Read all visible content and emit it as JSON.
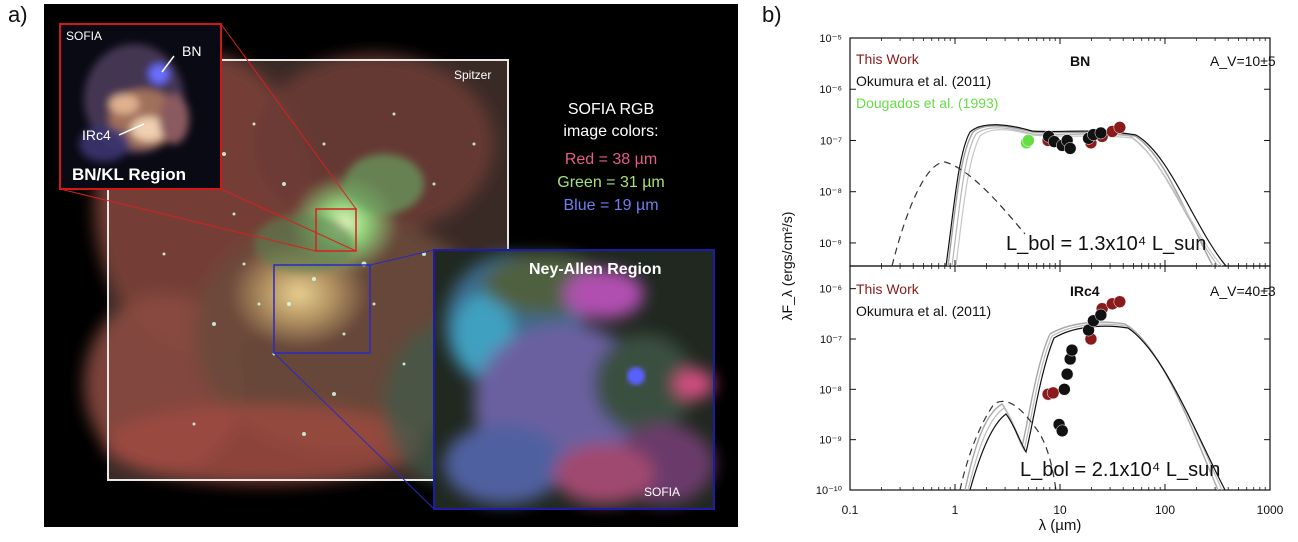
{
  "panel_a": {
    "label": "a)",
    "main_image_tag": "Spitzer",
    "inset_top_tag": "SOFIA",
    "inset_bottom_tag": "SOFIA",
    "bn_label": "BN",
    "irc4_label": "IRc4",
    "bnkl_region": "BN/KL Region",
    "ney_allen_region": "Ney-Allen Region",
    "legend_title_1": "SOFIA RGB",
    "legend_title_2": "image colors:",
    "legend_red": "Red = 38 µm",
    "legend_green": "Green = 31 µm",
    "legend_blue": "Blue = 19 µm",
    "colors": {
      "red": "#e85b8c",
      "green": "#a6e07a",
      "blue": "#6f7ff0",
      "inset_top_border": "#d01818",
      "inset_bottom_border": "#1c1ca8"
    }
  },
  "panel_b": {
    "label": "b)",
    "ylabel": "λF_λ (ergs/cm²/s)",
    "xlabel": "λ (µm)",
    "x_ticks": [
      "0.1",
      "1",
      "10",
      "100",
      "1000"
    ],
    "y_ticks_top": [
      "10⁻⁵",
      "10⁻⁶",
      "10⁻⁷",
      "10⁻⁸",
      "10⁻⁹"
    ],
    "y_ticks_bottom": [
      "10⁻⁶",
      "10⁻⁷",
      "10⁻⁸",
      "10⁻⁹",
      "10⁻¹⁰"
    ],
    "top": {
      "legend_this_work": "This Work",
      "legend_okumura": "Okumura et al. (2011)",
      "legend_dougados": "Dougados et al. (1993)",
      "source": "BN",
      "av": "A_V=10±5",
      "lbol": "L_bol = 1.3x10⁴ L_sun"
    },
    "bottom": {
      "legend_this_work": "This Work",
      "legend_okumura": "Okumura et al. (2011)",
      "source": "IRc4",
      "av": "A_V=40±3",
      "lbol": "L_bol = 2.1x10⁴ L_sun"
    },
    "colors": {
      "this_work": "#8b1a1a",
      "okumura": "#111111",
      "dougados": "#66dd44",
      "model": "#a0a0a0"
    }
  },
  "chart_data": [
    {
      "type": "scatter",
      "source": "BN",
      "xlim": [
        0.1,
        1000
      ],
      "ylim": [
        1e-10,
        1e-05
      ],
      "x_scale": "log",
      "y_scale": "log",
      "series": [
        {
          "name": "This Work",
          "x": [
            7.7,
            19.7,
            25.2,
            31.5,
            37.1
          ],
          "y": [
            1e-07,
            9e-08,
            1.2e-07,
            1.5e-07,
            1.8e-07
          ]
        },
        {
          "name": "Okumura et al. (2011)",
          "x": [
            7.8,
            8.8,
            10.5,
            11.7,
            12.5,
            18.7,
            20.8,
            24.5
          ],
          "y": [
            1.2e-07,
            9.5e-08,
            8e-08,
            1e-07,
            7e-08,
            1.1e-07,
            1.3e-07,
            1.4e-07
          ]
        },
        {
          "name": "Dougados et al. (1993)",
          "x": [
            4.8,
            5.0
          ],
          "y": [
            9e-08,
            1e-07
          ]
        }
      ]
    },
    {
      "type": "scatter",
      "source": "IRc4",
      "xlim": [
        0.1,
        1000
      ],
      "ylim": [
        1e-10,
        1e-05
      ],
      "x_scale": "log",
      "y_scale": "log",
      "series": [
        {
          "name": "This Work",
          "x": [
            7.7,
            8.6,
            19.7,
            25.2,
            31.5,
            37.1
          ],
          "y": [
            8e-09,
            8.5e-09,
            1e-07,
            4e-07,
            5e-07,
            5.5e-07
          ]
        },
        {
          "name": "Okumura et al. (2011)",
          "x": [
            9.8,
            10.5,
            11.0,
            11.7,
            12.5,
            13.0,
            18.7,
            20.8,
            24.5
          ],
          "y": [
            2e-09,
            1.5e-09,
            1e-08,
            2e-08,
            4e-08,
            6e-08,
            1.5e-07,
            2.3e-07,
            3e-07
          ]
        }
      ]
    }
  ]
}
